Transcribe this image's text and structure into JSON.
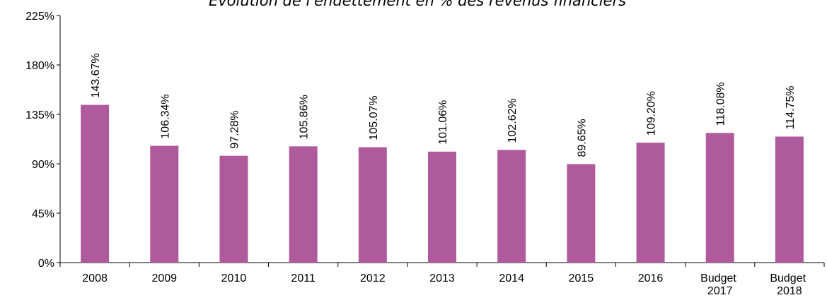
{
  "chart_data": {
    "type": "bar",
    "title": "Évolution de l'endettement en % des revenus financiers",
    "categories": [
      "2008",
      "2009",
      "2010",
      "2011",
      "2012",
      "2013",
      "2014",
      "2015",
      "2016",
      "Budget 2017",
      "Budget 2018"
    ],
    "values": [
      143.67,
      106.34,
      97.28,
      105.86,
      105.07,
      101.06,
      102.62,
      89.65,
      109.2,
      118.08,
      114.75
    ],
    "value_labels": [
      "143.67%",
      "106.34%",
      "97.28%",
      "105.86%",
      "105.07%",
      "101.06%",
      "102.62%",
      "89.65%",
      "109.20%",
      "118.08%",
      "114.75%"
    ],
    "color": "#b05a9e",
    "ylim": [
      0,
      225
    ],
    "yticks": [
      {
        "value": 0,
        "label": "0%"
      },
      {
        "value": 45,
        "label": "45%"
      },
      {
        "value": 90,
        "label": "90%"
      },
      {
        "value": 135,
        "label": "135%"
      },
      {
        "value": 180,
        "label": "180%"
      },
      {
        "value": 225,
        "label": "225%"
      }
    ],
    "grid": false
  }
}
